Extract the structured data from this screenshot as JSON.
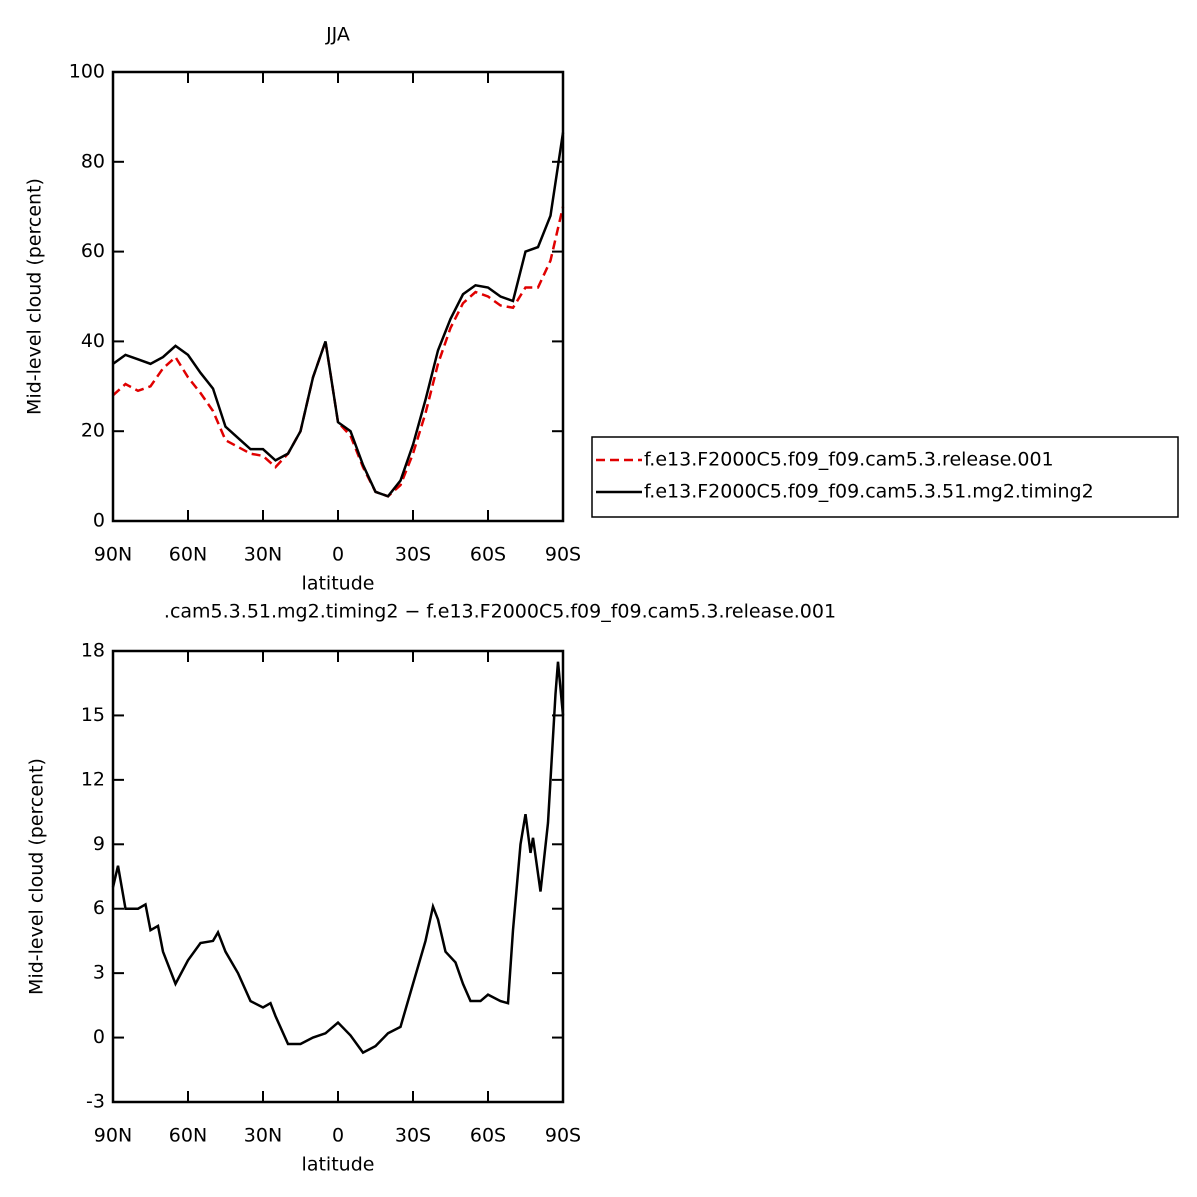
{
  "chart_data": [
    {
      "type": "line",
      "title": "JJA",
      "xlabel": "latitude",
      "ylabel": "Mid-level cloud (percent)",
      "x": [
        90,
        85,
        80,
        75,
        70,
        65,
        60,
        55,
        50,
        45,
        40,
        35,
        30,
        25,
        20,
        15,
        10,
        5,
        0,
        -5,
        -10,
        -15,
        -20,
        -25,
        -30,
        -35,
        -40,
        -45,
        -50,
        -55,
        -60,
        -65,
        -70,
        -75,
        -80,
        -85,
        -90
      ],
      "series": [
        {
          "name": "f.e13.F2000C5.f09_f09.cam5.3.release.001",
          "color": "#e00000",
          "dash": true,
          "values": [
            28,
            30.5,
            29,
            30,
            34,
            36.5,
            32,
            28.5,
            24.5,
            18,
            16.5,
            15,
            14.5,
            12,
            15,
            20,
            32,
            40,
            22,
            19,
            12,
            6.5,
            5.5,
            8,
            15,
            24,
            35,
            43,
            48.5,
            51,
            50,
            48,
            47.5,
            52,
            52,
            58,
            70
          ]
        },
        {
          "name": "f.e13.F2000C5.f09_f09.cam5.3.51.mg2.timing2",
          "color": "#000000",
          "dash": false,
          "values": [
            35,
            37,
            36,
            35,
            36.5,
            39,
            37,
            33,
            29.5,
            21,
            18.5,
            16,
            16,
            13.5,
            15,
            20,
            32,
            40,
            22,
            20,
            12.5,
            6.5,
            5.5,
            9,
            17,
            27,
            38,
            45,
            50.5,
            52.5,
            52,
            50,
            49,
            60,
            61,
            68,
            86.5
          ]
        }
      ],
      "xlim": [
        90,
        -90
      ],
      "xticks": [
        {
          "value": 90,
          "label": "90N"
        },
        {
          "value": 60,
          "label": "60N"
        },
        {
          "value": 30,
          "label": "30N"
        },
        0,
        {
          "value": -30,
          "label": "30S"
        },
        {
          "value": -60,
          "label": "60S"
        },
        {
          "value": -90,
          "label": "90S"
        }
      ],
      "ylim": [
        0,
        100
      ],
      "yticks": [
        0,
        20,
        40,
        60,
        80,
        100
      ]
    },
    {
      "type": "line",
      "title": ".cam5.3.51.mg2.timing2 − f.e13.F2000C5.f09_f09.cam5.3.release.001",
      "xlabel": "latitude",
      "ylabel": "Mid-level cloud (percent)",
      "x": [
        90,
        88,
        85,
        80,
        77,
        75,
        72,
        70,
        65,
        60,
        55,
        50,
        48,
        45,
        40,
        35,
        30,
        27,
        25,
        20,
        15,
        10,
        5,
        0,
        -5,
        -10,
        -15,
        -20,
        -25,
        -30,
        -35,
        -38,
        -40,
        -43,
        -47,
        -50,
        -53,
        -57,
        -60,
        -65,
        -68,
        -70,
        -73,
        -75,
        -77,
        -78,
        -81,
        -84,
        -87,
        -88,
        -90
      ],
      "series": [
        {
          "color": "#000000",
          "dash": false,
          "values": [
            7,
            8,
            6,
            6,
            6.2,
            5,
            5.2,
            4,
            2.5,
            3.6,
            4.4,
            4.5,
            4.9,
            4,
            3,
            1.7,
            1.4,
            1.6,
            1,
            -0.3,
            -0.3,
            0,
            0.2,
            0.7,
            0.1,
            -0.7,
            -0.4,
            0.2,
            0.5,
            2.5,
            4.5,
            6.1,
            5.5,
            4,
            3.5,
            2.5,
            1.7,
            1.7,
            2,
            1.7,
            1.6,
            5,
            9,
            10.4,
            8.6,
            9.3,
            6.8,
            10,
            16,
            17.5,
            15
          ]
        }
      ],
      "xlim": [
        90,
        -90
      ],
      "xticks": [
        {
          "value": 90,
          "label": "90N"
        },
        {
          "value": 60,
          "label": "60N"
        },
        {
          "value": 30,
          "label": "30N"
        },
        0,
        {
          "value": -30,
          "label": "30S"
        },
        {
          "value": -60,
          "label": "60S"
        },
        {
          "value": -90,
          "label": "90S"
        }
      ],
      "ylim": [
        -3,
        18
      ],
      "yticks": [
        -3,
        0,
        3,
        6,
        9,
        12,
        15,
        18
      ]
    }
  ]
}
